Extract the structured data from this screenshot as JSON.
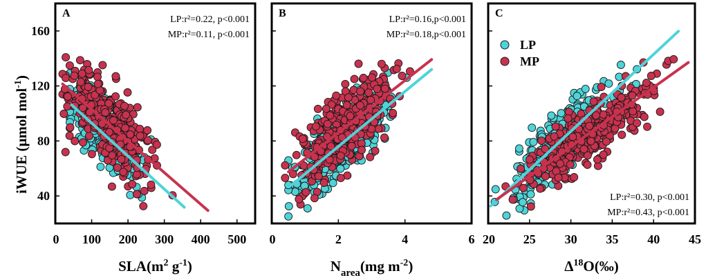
{
  "figure": {
    "ylabel_main": "iWUE (μmol mol",
    "ylabel_sup": "-1",
    "ylabel_close": ")"
  },
  "colors": {
    "LP": "#4FD3D9",
    "MP": "#C8324E",
    "edge": "#1a1a1a"
  },
  "legend": {
    "LP": "LP",
    "MP": "MP"
  },
  "chart_data": [
    {
      "type": "scatter",
      "panel": "A",
      "xlabel": "SLA(m² g⁻¹)",
      "xlim": [
        0,
        550
      ],
      "ylim": [
        20,
        180
      ],
      "xticks": [
        0,
        100,
        200,
        300,
        400,
        500
      ],
      "yticks": [
        40,
        80,
        120,
        160
      ],
      "annotations": [
        "LP:r²=0.22,  p<0.001",
        "MP:r²=0.11, p<0.001"
      ],
      "annotation_position": "top-right",
      "series": [
        {
          "name": "LP",
          "n": 320,
          "x_center": 135,
          "x_spread": 70,
          "x_min": 40,
          "x_max": 400,
          "slope": -0.24,
          "intercept": 117,
          "noise": 14,
          "trend_x": [
            45,
            355
          ]
        },
        {
          "name": "MP",
          "n": 340,
          "x_center": 150,
          "x_spread": 75,
          "x_min": 20,
          "x_max": 410,
          "slope": -0.23,
          "intercept": 126,
          "noise": 18,
          "trend_x": [
            20,
            420
          ]
        }
      ]
    },
    {
      "type": "scatter",
      "panel": "B",
      "xlabel": "N_area(mg m⁻²)",
      "xlim": [
        0,
        6
      ],
      "ylim": [
        20,
        180
      ],
      "xticks": [
        0,
        2,
        4,
        6
      ],
      "yticks": [
        40,
        80,
        120,
        160
      ],
      "annotations": [
        "LP:r²=0.16,p<0.001",
        "MP:r²=0.18,p<0.001"
      ],
      "annotation_position": "top-right",
      "series": [
        {
          "name": "LP",
          "n": 320,
          "x_center": 2.1,
          "x_spread": 0.9,
          "x_min": 0.5,
          "x_max": 4.9,
          "slope": 20,
          "intercept": 36,
          "noise": 14,
          "trend_x": [
            0.6,
            4.8
          ]
        },
        {
          "name": "MP",
          "n": 340,
          "x_center": 2.3,
          "x_spread": 0.9,
          "x_min": 0.4,
          "x_max": 4.8,
          "slope": 19,
          "intercept": 48,
          "noise": 18,
          "trend_x": [
            0.5,
            4.8
          ]
        }
      ]
    },
    {
      "type": "scatter",
      "panel": "C",
      "xlabel": "Δ¹⁸O(‰)",
      "xlim": [
        20,
        45
      ],
      "ylim": [
        20,
        180
      ],
      "xticks": [
        20,
        25,
        30,
        35,
        40,
        45
      ],
      "yticks": [
        40,
        80,
        120,
        160
      ],
      "annotations": [
        "LP:r²=0.30, p<0.001",
        "MP:r²=0.43, p<0.001"
      ],
      "annotation_position": "bottom-right",
      "legend_position": "top-left",
      "series": [
        {
          "name": "LP",
          "n": 320,
          "x_center": 29,
          "x_spread": 4,
          "x_min": 20.5,
          "x_max": 43,
          "slope": 5.6,
          "intercept": -81,
          "noise": 14,
          "trend_x": [
            20.3,
            43
          ]
        },
        {
          "name": "MP",
          "n": 340,
          "x_center": 32,
          "x_spread": 4.5,
          "x_min": 21,
          "x_max": 44.5,
          "slope": 4.3,
          "intercept": -53,
          "noise": 14,
          "trend_x": [
            21,
            44.2
          ]
        }
      ]
    }
  ]
}
